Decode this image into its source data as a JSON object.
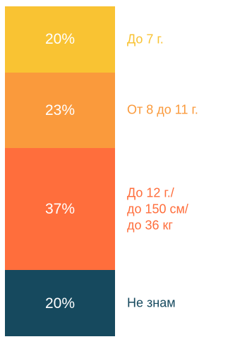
{
  "chart_data": {
    "type": "bar",
    "stacked": true,
    "orientation": "vertical",
    "categories": [
      "До 7 г.",
      "От 8 до 11 г.",
      "До 12 г./\nдо 150 см/\nдо 36 кг",
      "Не знам"
    ],
    "values": [
      20,
      23,
      37,
      20
    ],
    "value_labels": [
      "20%",
      "23%",
      "37%",
      "20%"
    ],
    "colors": [
      "#F9C333",
      "#FA9A3C",
      "#FF6E3C",
      "#16495E"
    ],
    "label_colors": [
      "#F9C333",
      "#FA9A3C",
      "#FF6E3C",
      "#16495E"
    ],
    "title": "",
    "xlabel": "",
    "ylabel": "",
    "grid": false,
    "legend": "right"
  }
}
